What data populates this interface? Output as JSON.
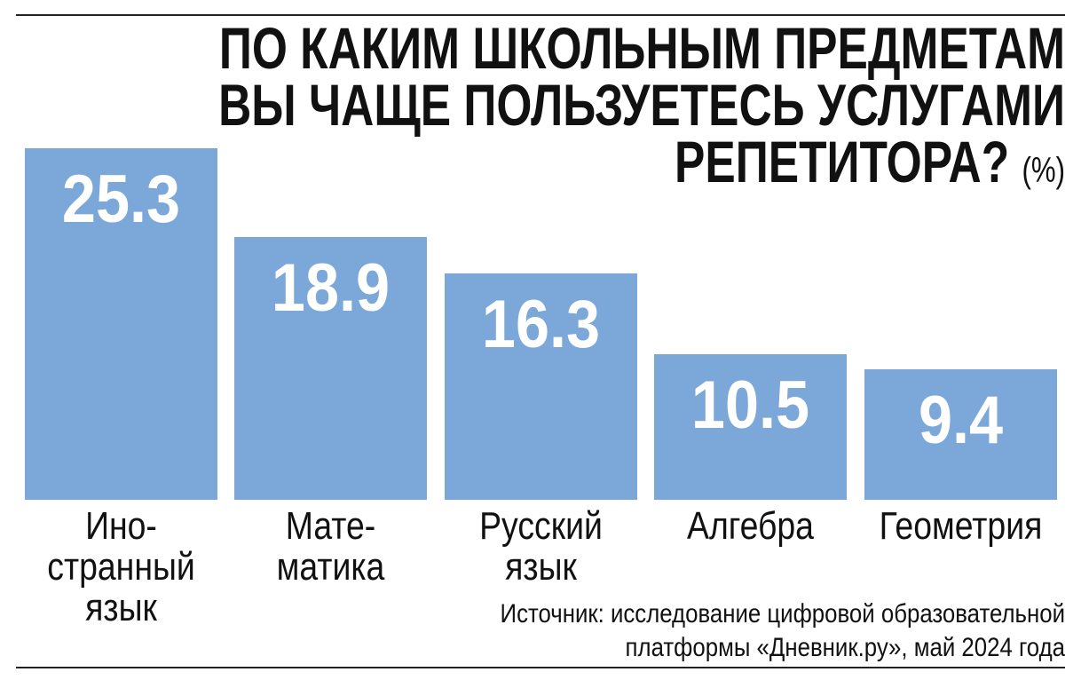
{
  "chart_data": {
    "type": "bar",
    "title": "ПО КАКИМ ШКОЛЬНЫМ ПРЕДМЕТАМ\nВЫ ЧАЩЕ ПОЛЬЗУЕТЕСЬ УСЛУГАМИ\nРЕПЕТИТОРА?",
    "unit": "(%)",
    "categories": [
      "Ино-\nстранный\nязык",
      "Мате-\nматика",
      "Русский\nязык",
      "Алгебра",
      "Геометрия"
    ],
    "values": [
      25.3,
      18.9,
      16.3,
      10.5,
      9.4
    ],
    "color": "#7ba7d9",
    "source": "Источник: исследование цифровой образовательной\nплатформы «Дневник.ру», май 2024 года"
  }
}
